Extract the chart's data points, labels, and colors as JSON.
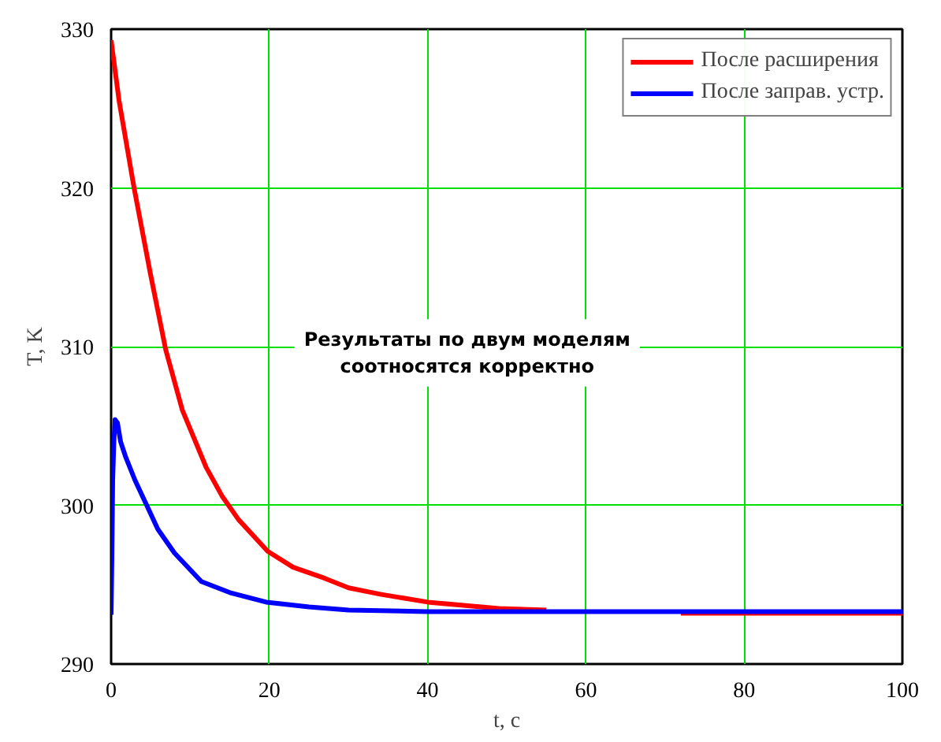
{
  "chart_data": {
    "type": "line",
    "xlabel": "t, c",
    "ylabel": "T, K",
    "xlim": [
      0,
      100
    ],
    "ylim": [
      290,
      330
    ],
    "xticks": [
      0,
      20,
      40,
      60,
      80,
      100
    ],
    "yticks": [
      290,
      300,
      310,
      320,
      330
    ],
    "grid": true,
    "legend": "top right",
    "line_style": "solid",
    "annotations": [
      "Результаты по двум моделям\nсоотносятся корректно"
    ],
    "series": [
      {
        "name": "После расширения",
        "color": "#ff0000",
        "x": [
          0,
          1,
          2.9,
          5,
          6.9,
          9,
          12,
          14,
          16.1,
          19.8,
          23,
          27,
          30,
          34,
          40,
          49,
          55,
          70,
          72,
          85,
          100
        ],
        "values": [
          329.3,
          325.5,
          320,
          314.5,
          309.8,
          306,
          302.4,
          300.6,
          299.1,
          297.1,
          296.1,
          295.4,
          294.8,
          294.4,
          293.9,
          293.5,
          293.4,
          null,
          293.2,
          293.2,
          293.2
        ]
      },
      {
        "name": "После заправ. устр.",
        "color": "#0000ff",
        "x": [
          0,
          0.1,
          0.2,
          0.35,
          0.5,
          0.8,
          1.2,
          1.8,
          3,
          4.5,
          5.9,
          8,
          11.4,
          15,
          19.6,
          25,
          30,
          40,
          55,
          70,
          85,
          100
        ],
        "values": [
          293.1,
          296.8,
          301.6,
          304,
          305.4,
          305.2,
          304,
          303.1,
          301.6,
          300,
          298.5,
          297,
          295.2,
          294.5,
          293.9,
          293.6,
          293.4,
          293.3,
          293.3,
          293.3,
          293.3,
          293.3
        ]
      }
    ]
  }
}
